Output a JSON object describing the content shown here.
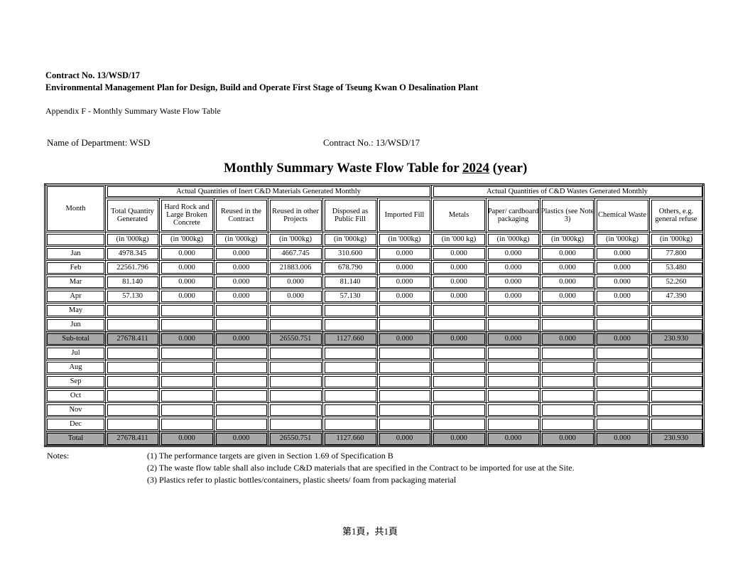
{
  "header": {
    "contract": "Contract No. 13/WSD/17",
    "plan": "Environmental Management Plan for Design, Build and Operate First Stage of Tseung Kwan O Desalination Plant",
    "appendix": "Appendix F - Monthly Summary Waste Flow Table",
    "department": "Name of Department: WSD",
    "contract_no": "Contract No.:  13/WSD/17",
    "title_prefix": "Monthly Summary Waste Flow Table for ",
    "year": "2024",
    "title_suffix": " (year)"
  },
  "table": {
    "month_header": "Month",
    "group1": "Actual Quantities of Inert C&D Materials Generated Monthly",
    "group2": "Actual Quantities of C&D Wastes Generated Monthly",
    "columns": [
      "Total Quantity Generated",
      "Hard Rock and Large Broken Concrete",
      "Reused in the Contract",
      "Reused in other Projects",
      "Disposed as Public Fill",
      "Imported Fill",
      "Metals",
      "Paper/ cardboard packaging",
      "Plastics (see Note 3)",
      "Chemical Waste",
      "Others, e.g. general refuse"
    ],
    "units": [
      "(in '000kg)",
      "(in '000kg)",
      "(in '000kg)",
      "(in '000kg)",
      "(in '000kg)",
      "(in '000kg)",
      "(in '000 kg)",
      "(in '000kg)",
      "(in '000kg)",
      "(in '000kg)",
      "(in '000kg)"
    ],
    "rows": [
      {
        "month": "Jan",
        "values": [
          "4978.345",
          "0.000",
          "0.000",
          "4667.745",
          "310.600",
          "0.000",
          "0.000",
          "0.000",
          "0.000",
          "0.000",
          "77.800"
        ]
      },
      {
        "month": "Feb",
        "values": [
          "22561.796",
          "0.000",
          "0.000",
          "21883.006",
          "678.790",
          "0.000",
          "0.000",
          "0.000",
          "0.000",
          "0.000",
          "53.480"
        ]
      },
      {
        "month": "Mar",
        "values": [
          "81.140",
          "0.000",
          "0.000",
          "0.000",
          "81.140",
          "0.000",
          "0.000",
          "0.000",
          "0.000",
          "0.000",
          "52.260"
        ]
      },
      {
        "month": "Apr",
        "values": [
          "57.130",
          "0.000",
          "0.000",
          "0.000",
          "57.130",
          "0.000",
          "0.000",
          "0.000",
          "0.000",
          "0.000",
          "47.390"
        ]
      },
      {
        "month": "May",
        "values": [
          "",
          "",
          "",
          "",
          "",
          "",
          "",
          "",
          "",
          "",
          ""
        ]
      },
      {
        "month": "Jun",
        "values": [
          "",
          "",
          "",
          "",
          "",
          "",
          "",
          "",
          "",
          "",
          ""
        ]
      },
      {
        "month": "Sub-total",
        "shaded": true,
        "values": [
          "27678.411",
          "0.000",
          "0.000",
          "26550.751",
          "1127.660",
          "0.000",
          "0.000",
          "0.000",
          "0.000",
          "0.000",
          "230.930"
        ]
      },
      {
        "month": "Jul",
        "values": [
          "",
          "",
          "",
          "",
          "",
          "",
          "",
          "",
          "",
          "",
          ""
        ]
      },
      {
        "month": "Aug",
        "values": [
          "",
          "",
          "",
          "",
          "",
          "",
          "",
          "",
          "",
          "",
          ""
        ]
      },
      {
        "month": "Sep",
        "values": [
          "",
          "",
          "",
          "",
          "",
          "",
          "",
          "",
          "",
          "",
          ""
        ]
      },
      {
        "month": "Oct",
        "values": [
          "",
          "",
          "",
          "",
          "",
          "",
          "",
          "",
          "",
          "",
          ""
        ]
      },
      {
        "month": "Nov",
        "values": [
          "",
          "",
          "",
          "",
          "",
          "",
          "",
          "",
          "",
          "",
          ""
        ]
      },
      {
        "month": "Dec",
        "values": [
          "",
          "",
          "",
          "",
          "",
          "",
          "",
          "",
          "",
          "",
          ""
        ]
      },
      {
        "month": "Total",
        "shaded": true,
        "values": [
          "27678.411",
          "0.000",
          "0.000",
          "26550.751",
          "1127.660",
          "0.000",
          "0.000",
          "0.000",
          "0.000",
          "0.000",
          "230.930"
        ]
      }
    ]
  },
  "notes": {
    "label": "Notes:",
    "items": [
      "(1) The performance targets are given in Section 1.69 of Specification B",
      "(2) The waste flow table shall also include C&D materials that are specified in the Contract to be imported for use at the Site.",
      "(3) Plastics refer to plastic bottles/containers, plastic sheets/ foam from packaging material"
    ]
  },
  "footer": "第1頁，共1頁"
}
